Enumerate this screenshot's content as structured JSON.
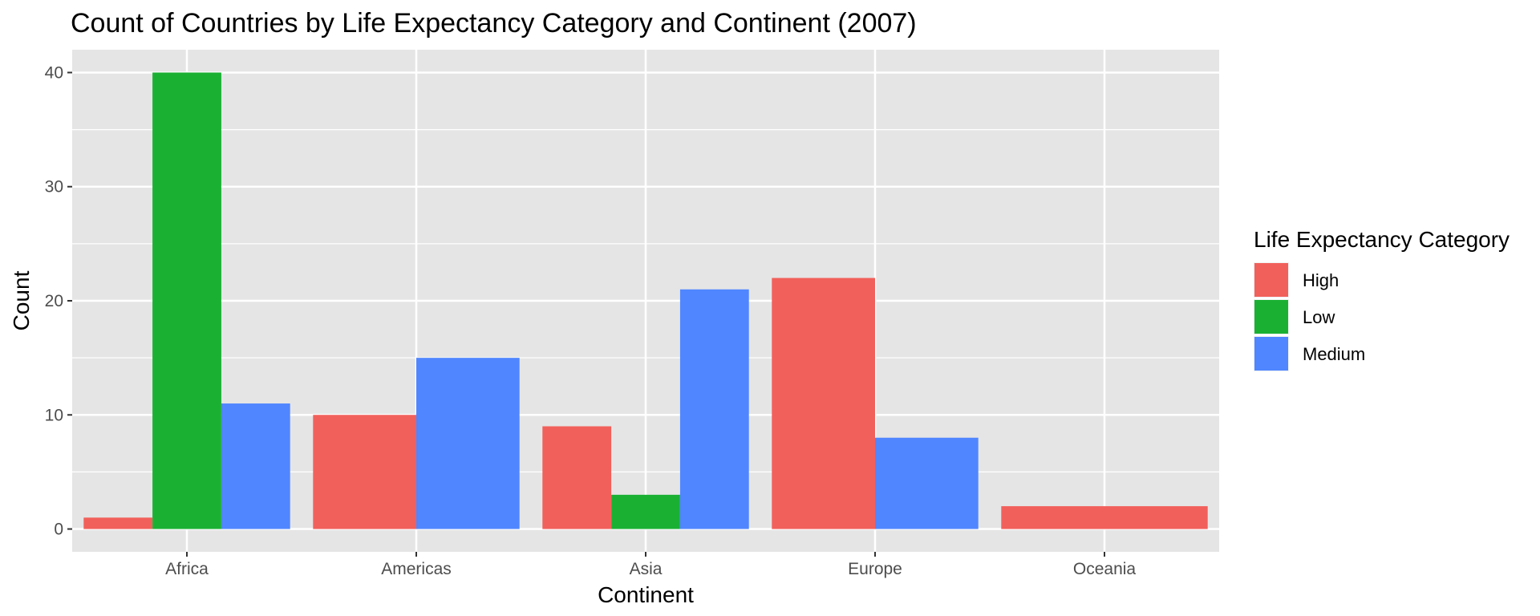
{
  "chart_data": {
    "type": "bar",
    "title": "Count of Countries by Life Expectancy Category and Continent (2007)",
    "xlabel": "Continent",
    "ylabel": "Count",
    "categories": [
      "Africa",
      "Americas",
      "Asia",
      "Europe",
      "Oceania"
    ],
    "series": [
      {
        "name": "High",
        "color": "#F2605B",
        "values": [
          1,
          10,
          9,
          22,
          2
        ]
      },
      {
        "name": "Low",
        "color": "#1AB133",
        "values": [
          40,
          0,
          3,
          0,
          0
        ]
      },
      {
        "name": "Medium",
        "color": "#5086FF",
        "values": [
          11,
          15,
          21,
          8,
          0
        ]
      }
    ],
    "ylim": [
      -2,
      42
    ],
    "yticks": [
      0,
      10,
      20,
      30,
      40
    ],
    "grid": true,
    "panel_background": "#E5E5E5",
    "legend": {
      "title": "Life Expectancy Category",
      "placement": "right"
    }
  }
}
